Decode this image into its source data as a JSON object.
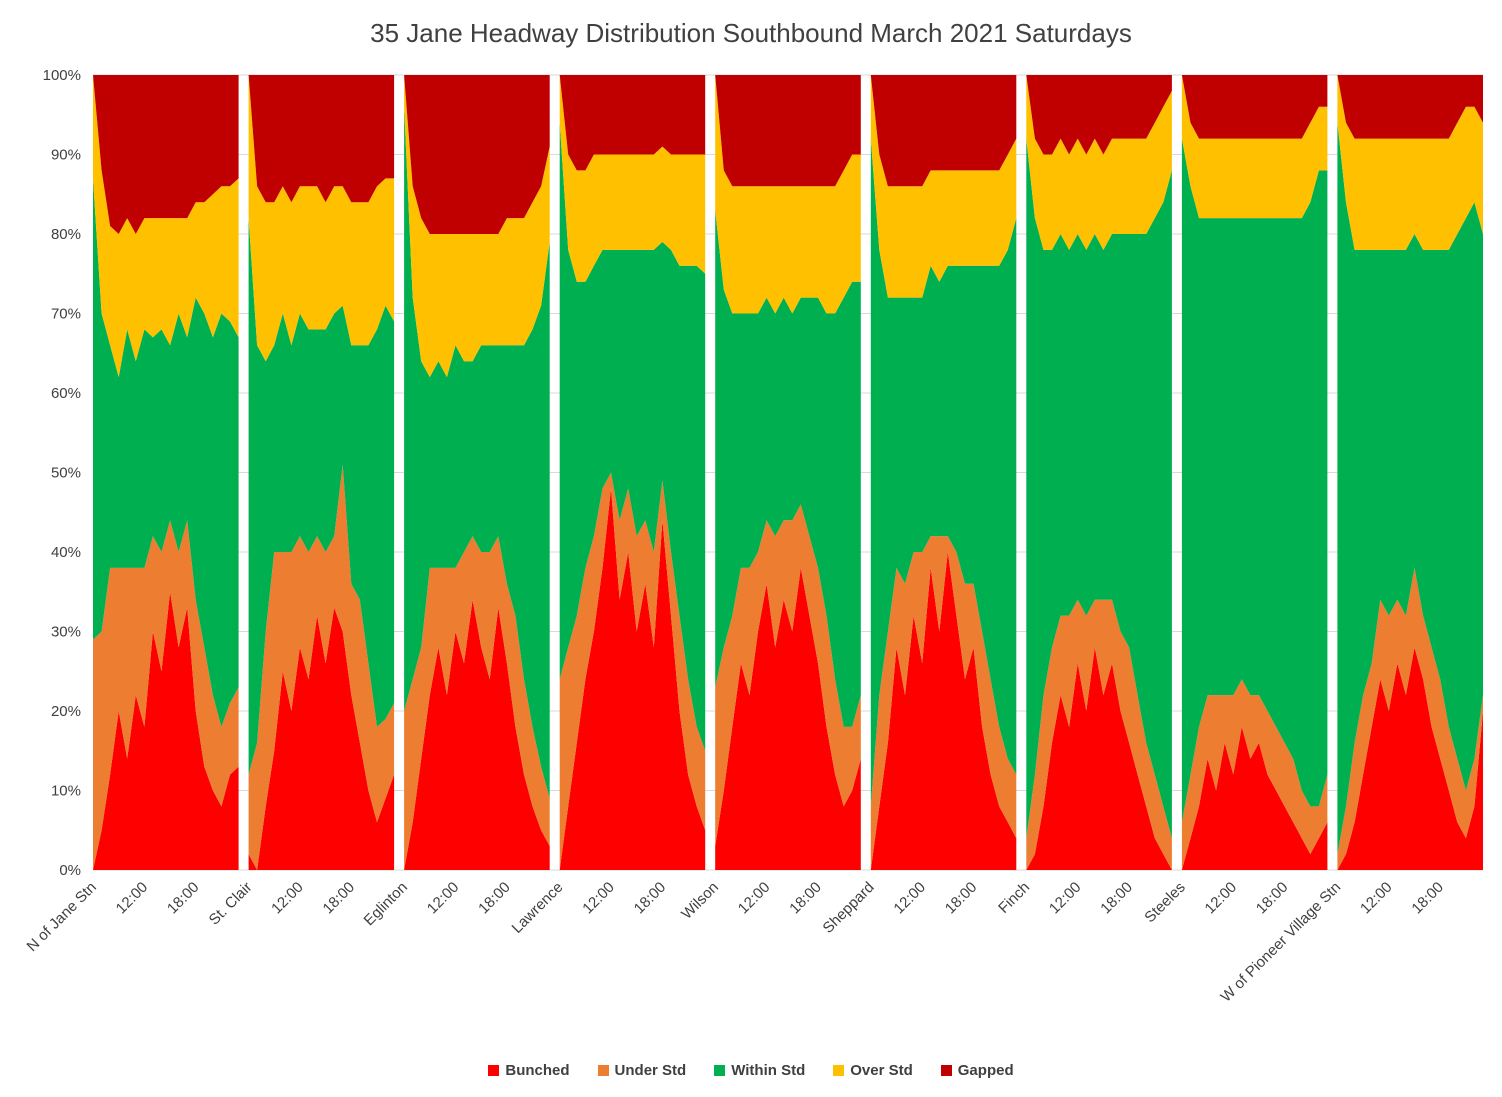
{
  "chart_data": {
    "type": "area",
    "stacking": "percent",
    "title": "35 Jane  Headway Distribution Southbound March 2021 Saturdays",
    "ylim": [
      0,
      100
    ],
    "grid": true,
    "gridline_color": "#D9D9D9",
    "legend_position": "bottom",
    "y_ticks": [
      "0%",
      "10%",
      "20%",
      "30%",
      "40%",
      "50%",
      "60%",
      "70%",
      "80%",
      "90%",
      "100%"
    ],
    "x_times": [
      "6:00",
      "7:00",
      "8:00",
      "9:00",
      "10:00",
      "11:00",
      "12:00",
      "13:00",
      "14:00",
      "15:00",
      "16:00",
      "17:00",
      "18:00",
      "19:00",
      "20:00",
      "21:00",
      "22:00",
      "23:00"
    ],
    "time_tick_indices": [
      6,
      12
    ],
    "time_tick_labels": [
      "12:00",
      "18:00"
    ],
    "series_names": [
      "Bunched",
      "Under Std",
      "Within Std",
      "Over Std",
      "Gapped"
    ],
    "series_keys": [
      "bunched",
      "under_std",
      "within_std",
      "over_std",
      "gapped"
    ],
    "series_colors": [
      "#FF0000",
      "#ED7D31",
      "#00B050",
      "#FFC000",
      "#C00000"
    ],
    "segments": [
      {
        "station": "N of Jane Stn",
        "bunched": [
          0,
          5,
          12,
          20,
          14,
          22,
          18,
          30,
          25,
          35,
          28,
          33,
          20,
          13,
          10,
          8,
          12,
          13
        ],
        "under_std": [
          29,
          25,
          26,
          18,
          24,
          16,
          20,
          12,
          15,
          9,
          12,
          11,
          14,
          15,
          12,
          10,
          9,
          10
        ],
        "within_std": [
          58,
          40,
          28,
          24,
          30,
          26,
          30,
          25,
          28,
          22,
          30,
          23,
          38,
          42,
          45,
          52,
          48,
          44
        ],
        "over_std": [
          13,
          18,
          15,
          18,
          14,
          16,
          14,
          15,
          14,
          16,
          12,
          15,
          12,
          14,
          18,
          16,
          17,
          20
        ],
        "gapped": [
          0,
          12,
          19,
          20,
          18,
          20,
          18,
          18,
          18,
          18,
          18,
          18,
          16,
          16,
          15,
          14,
          14,
          13
        ]
      },
      {
        "station": "St. Clair",
        "bunched": [
          2,
          0,
          8,
          15,
          25,
          20,
          28,
          24,
          32,
          26,
          33,
          30,
          22,
          16,
          10,
          6,
          9,
          12
        ],
        "under_std": [
          10,
          16,
          22,
          25,
          15,
          20,
          14,
          16,
          10,
          14,
          9,
          21,
          14,
          18,
          16,
          12,
          10,
          9
        ],
        "within_std": [
          70,
          50,
          34,
          26,
          30,
          26,
          28,
          28,
          26,
          28,
          28,
          20,
          30,
          32,
          40,
          50,
          52,
          48
        ],
        "over_std": [
          18,
          20,
          20,
          18,
          16,
          18,
          16,
          18,
          18,
          16,
          16,
          15,
          18,
          18,
          18,
          18,
          16,
          18
        ],
        "gapped": [
          0,
          14,
          16,
          16,
          14,
          16,
          14,
          14,
          14,
          16,
          14,
          14,
          16,
          16,
          16,
          14,
          13,
          13
        ]
      },
      {
        "station": "Eglinton",
        "bunched": [
          0,
          6,
          14,
          22,
          28,
          22,
          30,
          26,
          34,
          28,
          24,
          33,
          26,
          18,
          12,
          8,
          5,
          3
        ],
        "under_std": [
          20,
          18,
          14,
          16,
          10,
          16,
          8,
          14,
          8,
          12,
          16,
          9,
          10,
          14,
          12,
          10,
          8,
          6
        ],
        "within_std": [
          76,
          48,
          36,
          24,
          26,
          24,
          28,
          24,
          22,
          26,
          26,
          24,
          30,
          34,
          42,
          50,
          58,
          70
        ],
        "over_std": [
          4,
          14,
          18,
          18,
          16,
          18,
          14,
          16,
          16,
          14,
          14,
          14,
          16,
          16,
          16,
          16,
          15,
          12
        ],
        "gapped": [
          0,
          14,
          18,
          20,
          20,
          20,
          20,
          20,
          20,
          20,
          20,
          20,
          18,
          18,
          18,
          16,
          14,
          9
        ]
      },
      {
        "station": "Lawrence",
        "bunched": [
          0,
          8,
          16,
          24,
          30,
          38,
          48,
          34,
          40,
          30,
          36,
          28,
          44,
          32,
          20,
          12,
          8,
          5
        ],
        "under_std": [
          24,
          20,
          16,
          14,
          12,
          10,
          2,
          10,
          8,
          12,
          8,
          12,
          5,
          8,
          12,
          12,
          10,
          10
        ],
        "within_std": [
          70,
          50,
          42,
          36,
          34,
          30,
          28,
          34,
          30,
          36,
          34,
          38,
          30,
          38,
          44,
          52,
          58,
          60
        ],
        "over_std": [
          6,
          12,
          14,
          14,
          14,
          12,
          12,
          12,
          12,
          12,
          12,
          12,
          12,
          12,
          14,
          14,
          14,
          15
        ],
        "gapped": [
          0,
          10,
          12,
          12,
          10,
          10,
          10,
          10,
          10,
          10,
          10,
          10,
          9,
          10,
          10,
          10,
          10,
          10
        ]
      },
      {
        "station": "Wilson",
        "bunched": [
          3,
          10,
          18,
          26,
          22,
          30,
          36,
          28,
          34,
          30,
          38,
          32,
          26,
          18,
          12,
          8,
          10,
          14
        ],
        "under_std": [
          20,
          18,
          14,
          12,
          16,
          10,
          8,
          14,
          10,
          14,
          8,
          10,
          12,
          14,
          12,
          10,
          8,
          8
        ],
        "within_std": [
          60,
          45,
          38,
          32,
          32,
          30,
          28,
          28,
          28,
          26,
          26,
          30,
          34,
          38,
          46,
          54,
          56,
          52
        ],
        "over_std": [
          17,
          15,
          16,
          16,
          16,
          16,
          14,
          16,
          14,
          16,
          14,
          14,
          14,
          16,
          16,
          16,
          16,
          16
        ],
        "gapped": [
          0,
          12,
          14,
          14,
          14,
          14,
          14,
          14,
          14,
          14,
          14,
          14,
          14,
          14,
          14,
          12,
          10,
          10
        ]
      },
      {
        "station": "Sheppard",
        "bunched": [
          0,
          8,
          16,
          28,
          22,
          32,
          26,
          38,
          30,
          40,
          32,
          24,
          28,
          18,
          12,
          8,
          6,
          4
        ],
        "under_std": [
          8,
          14,
          14,
          10,
          14,
          8,
          14,
          4,
          12,
          2,
          8,
          12,
          8,
          12,
          12,
          10,
          8,
          8
        ],
        "within_std": [
          84,
          56,
          42,
          34,
          36,
          32,
          32,
          34,
          32,
          34,
          36,
          40,
          40,
          46,
          52,
          58,
          64,
          70
        ],
        "over_std": [
          8,
          12,
          14,
          14,
          14,
          14,
          14,
          12,
          14,
          12,
          12,
          12,
          12,
          12,
          12,
          12,
          12,
          10
        ],
        "gapped": [
          0,
          10,
          14,
          14,
          14,
          14,
          14,
          12,
          12,
          12,
          12,
          12,
          12,
          12,
          12,
          12,
          10,
          8
        ]
      },
      {
        "station": "Finch",
        "bunched": [
          0,
          2,
          8,
          16,
          22,
          18,
          26,
          20,
          28,
          22,
          26,
          20,
          16,
          12,
          8,
          4,
          2,
          0
        ],
        "under_std": [
          4,
          10,
          14,
          12,
          10,
          14,
          8,
          12,
          6,
          12,
          8,
          10,
          12,
          10,
          8,
          8,
          6,
          4
        ],
        "within_std": [
          88,
          70,
          56,
          50,
          48,
          46,
          46,
          46,
          46,
          44,
          46,
          50,
          52,
          58,
          64,
          70,
          76,
          84
        ],
        "over_std": [
          8,
          10,
          12,
          12,
          12,
          12,
          12,
          12,
          12,
          12,
          12,
          12,
          12,
          12,
          12,
          12,
          12,
          10
        ],
        "gapped": [
          0,
          8,
          10,
          10,
          8,
          10,
          8,
          10,
          8,
          10,
          8,
          8,
          8,
          8,
          8,
          6,
          4,
          2
        ]
      },
      {
        "station": "Steeles",
        "bunched": [
          0,
          4,
          8,
          14,
          10,
          16,
          12,
          18,
          14,
          16,
          12,
          10,
          8,
          6,
          4,
          2,
          4,
          6
        ],
        "under_std": [
          6,
          8,
          10,
          8,
          12,
          6,
          10,
          6,
          8,
          6,
          8,
          8,
          8,
          8,
          6,
          6,
          4,
          6
        ],
        "within_std": [
          86,
          74,
          64,
          60,
          60,
          60,
          60,
          58,
          60,
          60,
          62,
          64,
          66,
          68,
          72,
          76,
          80,
          76
        ],
        "over_std": [
          8,
          8,
          10,
          10,
          10,
          10,
          10,
          10,
          10,
          10,
          10,
          10,
          10,
          10,
          10,
          10,
          8,
          8
        ],
        "gapped": [
          0,
          6,
          8,
          8,
          8,
          8,
          8,
          8,
          8,
          8,
          8,
          8,
          8,
          8,
          8,
          6,
          4,
          4
        ]
      },
      {
        "station": "W of Pioneer Village Stn",
        "bunched": [
          0,
          2,
          6,
          12,
          18,
          24,
          20,
          26,
          22,
          28,
          24,
          18,
          14,
          10,
          6,
          4,
          8,
          20
        ],
        "under_std": [
          2,
          6,
          10,
          10,
          8,
          10,
          12,
          8,
          10,
          10,
          8,
          10,
          10,
          8,
          8,
          6,
          6,
          2
        ],
        "within_std": [
          92,
          76,
          62,
          56,
          52,
          44,
          46,
          44,
          46,
          42,
          46,
          50,
          54,
          60,
          66,
          72,
          70,
          58
        ],
        "over_std": [
          6,
          10,
          14,
          14,
          14,
          14,
          14,
          14,
          14,
          12,
          14,
          14,
          14,
          14,
          14,
          14,
          12,
          14
        ],
        "gapped": [
          0,
          6,
          8,
          8,
          8,
          8,
          8,
          8,
          8,
          8,
          8,
          8,
          8,
          8,
          6,
          4,
          4,
          6
        ]
      }
    ]
  }
}
